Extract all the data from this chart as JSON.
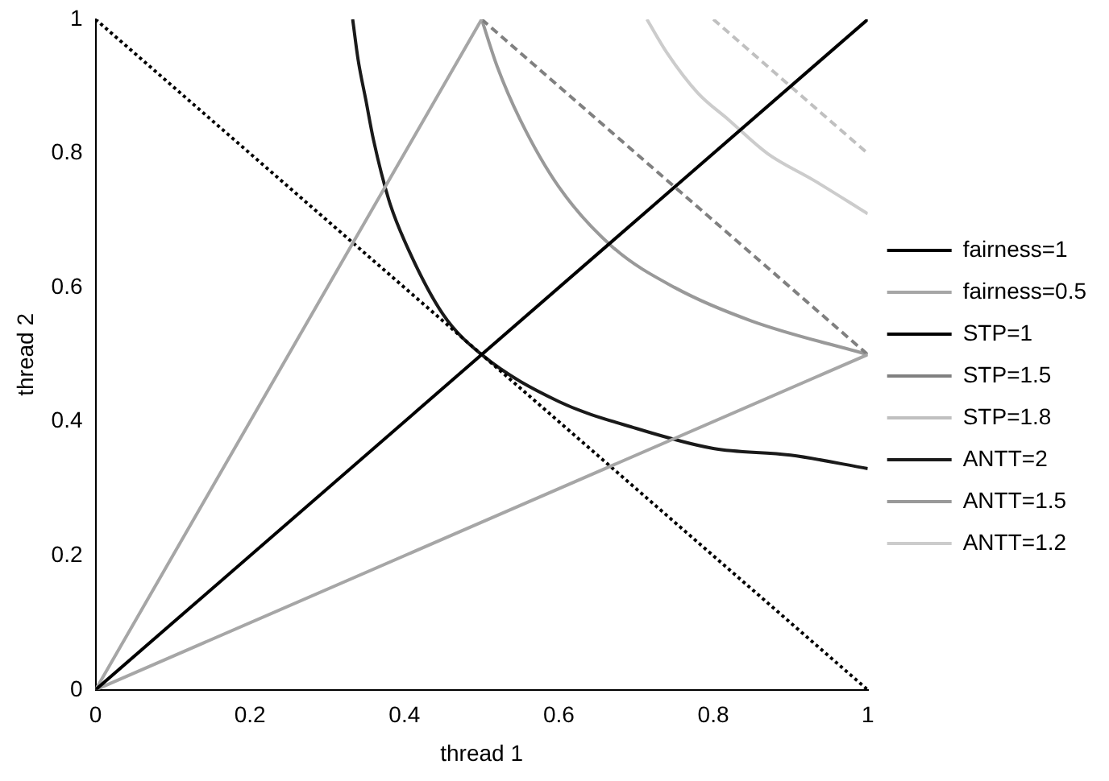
{
  "chart_data": {
    "type": "line",
    "xlabel": "thread 1",
    "ylabel": "thread 2",
    "xlim": [
      0,
      1
    ],
    "ylim": [
      0,
      1
    ],
    "xticks": [
      0,
      0.2,
      0.4,
      0.6,
      0.8,
      1
    ],
    "yticks": [
      0,
      0.2,
      0.4,
      0.6,
      0.8,
      1
    ],
    "grid": false,
    "legend": "right",
    "marker": "none",
    "series": [
      {
        "name": "fairness=1",
        "color": "#000000",
        "line_style": "solid",
        "x": [
          0,
          1
        ],
        "values": [
          0,
          1
        ]
      },
      {
        "name": "fairness=0.5",
        "color": "#a6a6a6",
        "line_style": "solid",
        "x": [
          1,
          0,
          0.5
        ],
        "values": [
          0.5,
          0,
          1
        ]
      },
      {
        "name": "STP=1",
        "color": "#000000",
        "line_style": "dotted",
        "x": [
          0,
          1
        ],
        "values": [
          1,
          0
        ]
      },
      {
        "name": "STP=1.5",
        "color": "#808080",
        "line_style": "dashed",
        "x": [
          0.5,
          1
        ],
        "values": [
          1,
          0.5
        ]
      },
      {
        "name": "STP=1.8",
        "color": "#c0c0c0",
        "line_style": "dashed",
        "x": [
          0.8,
          1
        ],
        "values": [
          1,
          0.8
        ]
      },
      {
        "name": "ANTT=2",
        "color": "#1a1a1a",
        "line_style": "solid",
        "x": [
          0.333,
          0.34,
          0.35,
          0.36,
          0.38,
          0.4,
          0.45,
          0.5,
          0.6,
          0.7,
          0.8,
          0.9,
          1
        ],
        "values": [
          1,
          0.94,
          0.88,
          0.82,
          0.73,
          0.67,
          0.56,
          0.5,
          0.43,
          0.39,
          0.36,
          0.35,
          0.33
        ]
      },
      {
        "name": "ANTT=1.5",
        "color": "#999999",
        "line_style": "solid",
        "x": [
          0.5,
          0.52,
          0.55,
          0.6,
          0.67,
          0.75,
          0.85,
          1
        ],
        "values": [
          1,
          0.93,
          0.85,
          0.75,
          0.66,
          0.6,
          0.55,
          0.5
        ]
      },
      {
        "name": "ANTT=1.2",
        "color": "#cccccc",
        "line_style": "solid",
        "x": [
          0.714,
          0.74,
          0.78,
          0.82,
          0.87,
          0.93,
          1
        ],
        "values": [
          1,
          0.95,
          0.89,
          0.85,
          0.8,
          0.76,
          0.71
        ]
      }
    ]
  }
}
